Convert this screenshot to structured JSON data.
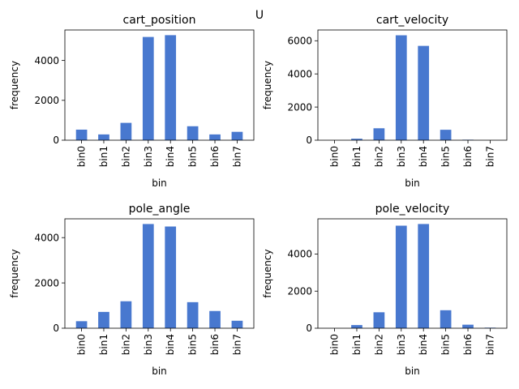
{
  "figure": {
    "suptitle": "U"
  },
  "chart_data": [
    {
      "type": "bar",
      "title": "cart_position",
      "xlabel": "bin",
      "ylabel": "frequency",
      "categories": [
        "bin0",
        "bin1",
        "bin2",
        "bin3",
        "bin4",
        "bin5",
        "bin6",
        "bin7"
      ],
      "values": [
        530,
        290,
        870,
        5180,
        5270,
        700,
        290,
        420
      ],
      "ylim": [
        0,
        5530
      ],
      "yticks": [
        0,
        2000,
        4000
      ],
      "color": "#4878cf",
      "grid": false
    },
    {
      "type": "bar",
      "title": "cart_velocity",
      "xlabel": "bin",
      "ylabel": "frequency",
      "categories": [
        "bin0",
        "bin1",
        "bin2",
        "bin3",
        "bin4",
        "bin5",
        "bin6",
        "bin7"
      ],
      "values": [
        0,
        90,
        720,
        6330,
        5690,
        630,
        30,
        0
      ],
      "ylim": [
        0,
        6650
      ],
      "yticks": [
        0,
        2000,
        4000,
        6000
      ],
      "color": "#4878cf",
      "grid": false
    },
    {
      "type": "bar",
      "title": "pole_angle",
      "xlabel": "bin",
      "ylabel": "frequency",
      "categories": [
        "bin0",
        "bin1",
        "bin2",
        "bin3",
        "bin4",
        "bin5",
        "bin6",
        "bin7"
      ],
      "values": [
        310,
        720,
        1190,
        4600,
        4490,
        1150,
        760,
        330
      ],
      "ylim": [
        0,
        4830
      ],
      "yticks": [
        0,
        2000,
        4000
      ],
      "color": "#4878cf",
      "grid": false
    },
    {
      "type": "bar",
      "title": "pole_velocity",
      "xlabel": "bin",
      "ylabel": "frequency",
      "categories": [
        "bin0",
        "bin1",
        "bin2",
        "bin3",
        "bin4",
        "bin5",
        "bin6",
        "bin7"
      ],
      "values": [
        0,
        170,
        860,
        5530,
        5620,
        970,
        190,
        30
      ],
      "ylim": [
        0,
        5900
      ],
      "yticks": [
        0,
        2000,
        4000
      ],
      "color": "#4878cf",
      "grid": false
    }
  ]
}
